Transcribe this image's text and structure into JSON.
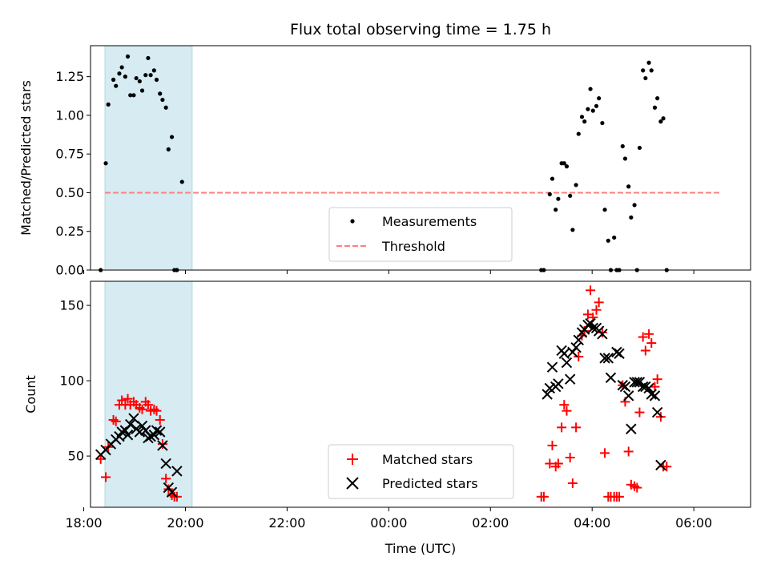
{
  "figure": {
    "title": "Flux total observing time = 1.75 h",
    "xlabel": "Time (UTC)"
  },
  "colors": {
    "shade": "#add8e6",
    "threshold": "#ff7f7f",
    "matched": "#ff0000",
    "predicted": "#000000",
    "measure": "#000000"
  },
  "chart_data": [
    {
      "type": "scatter",
      "ylabel": "Matched/Predicted stars",
      "xlim": [
        "18:08",
        "07:07"
      ],
      "ylim": [
        0,
        1.45
      ],
      "yticks": [
        0.0,
        0.25,
        0.5,
        0.75,
        1.0,
        1.25
      ],
      "ytick_labels": [
        "0.00",
        "0.25",
        "0.50",
        "0.75",
        "1.00",
        "1.25"
      ],
      "shaded_interval": [
        "18:25",
        "20:08"
      ],
      "threshold": {
        "name": "Threshold",
        "value": 0.5,
        "x": [
          "18:25",
          "06:30"
        ]
      },
      "legend_placement": "lower-center",
      "series": [
        {
          "name": "Measurements",
          "points": [
            [
              "18:20",
              0.0
            ],
            [
              "18:26",
              0.69
            ],
            [
              "18:29",
              1.07
            ],
            [
              "18:35",
              1.23
            ],
            [
              "18:38",
              1.19
            ],
            [
              "18:42",
              1.27
            ],
            [
              "18:45",
              1.31
            ],
            [
              "18:49",
              1.25
            ],
            [
              "18:52",
              1.38
            ],
            [
              "18:55",
              1.13
            ],
            [
              "18:59",
              1.13
            ],
            [
              "19:02",
              1.24
            ],
            [
              "19:06",
              1.22
            ],
            [
              "19:09",
              1.16
            ],
            [
              "19:13",
              1.26
            ],
            [
              "19:16",
              1.37
            ],
            [
              "19:19",
              1.26
            ],
            [
              "19:23",
              1.29
            ],
            [
              "19:26",
              1.23
            ],
            [
              "19:30",
              1.14
            ],
            [
              "19:33",
              1.1
            ],
            [
              "19:37",
              1.05
            ],
            [
              "19:40",
              0.78
            ],
            [
              "19:44",
              0.86
            ],
            [
              "19:47",
              0.0
            ],
            [
              "19:50",
              0.0
            ],
            [
              "19:56",
              0.57
            ],
            [
              "03:00",
              0.0
            ],
            [
              "03:03",
              0.0
            ],
            [
              "03:10",
              0.49
            ],
            [
              "03:13",
              0.59
            ],
            [
              "03:17",
              0.39
            ],
            [
              "03:20",
              0.46
            ],
            [
              "03:24",
              0.69
            ],
            [
              "03:27",
              0.69
            ],
            [
              "03:30",
              0.67
            ],
            [
              "03:34",
              0.48
            ],
            [
              "03:37",
              0.26
            ],
            [
              "03:41",
              0.55
            ],
            [
              "03:44",
              0.88
            ],
            [
              "03:48",
              0.99
            ],
            [
              "03:51",
              0.96
            ],
            [
              "03:55",
              1.04
            ],
            [
              "03:58",
              1.17
            ],
            [
              "04:01",
              1.03
            ],
            [
              "04:05",
              1.06
            ],
            [
              "04:08",
              1.11
            ],
            [
              "04:12",
              0.95
            ],
            [
              "04:15",
              0.39
            ],
            [
              "04:19",
              0.19
            ],
            [
              "04:22",
              0.0
            ],
            [
              "04:26",
              0.21
            ],
            [
              "04:29",
              0.0
            ],
            [
              "04:32",
              0.0
            ],
            [
              "04:36",
              0.8
            ],
            [
              "04:39",
              0.72
            ],
            [
              "04:43",
              0.54
            ],
            [
              "04:46",
              0.34
            ],
            [
              "04:50",
              0.42
            ],
            [
              "04:53",
              0.0
            ],
            [
              "04:56",
              0.79
            ],
            [
              "05:00",
              1.29
            ],
            [
              "05:03",
              1.24
            ],
            [
              "05:07",
              1.34
            ],
            [
              "05:10",
              1.29
            ],
            [
              "05:14",
              1.05
            ],
            [
              "05:17",
              1.11
            ],
            [
              "05:21",
              0.96
            ],
            [
              "05:24",
              0.98
            ],
            [
              "05:28",
              0.0
            ]
          ]
        }
      ]
    },
    {
      "type": "scatter",
      "ylabel": "Count",
      "xlim": [
        "18:08",
        "07:07"
      ],
      "ylim": [
        16,
        166
      ],
      "yticks": [
        50,
        100,
        150
      ],
      "ytick_labels": [
        "50",
        "100",
        "150"
      ],
      "xticks": [
        "18:00",
        "20:00",
        "22:00",
        "00:00",
        "02:00",
        "04:00",
        "06:00"
      ],
      "shaded_interval": [
        "18:25",
        "20:08"
      ],
      "legend_placement": "lower-center",
      "series": [
        {
          "name": "Matched stars",
          "marker": "+",
          "points": [
            [
              "18:20",
              48
            ],
            [
              "18:26",
              36
            ],
            [
              "18:29",
              56
            ],
            [
              "18:35",
              74
            ],
            [
              "18:38",
              73
            ],
            [
              "18:42",
              84
            ],
            [
              "18:45",
              87
            ],
            [
              "18:49",
              84
            ],
            [
              "18:52",
              88
            ],
            [
              "18:55",
              84
            ],
            [
              "18:59",
              86
            ],
            [
              "19:02",
              84
            ],
            [
              "19:06",
              82
            ],
            [
              "19:09",
              81
            ],
            [
              "19:13",
              86
            ],
            [
              "19:16",
              84
            ],
            [
              "19:19",
              80
            ],
            [
              "19:23",
              81
            ],
            [
              "19:26",
              80
            ],
            [
              "19:30",
              74
            ],
            [
              "19:33",
              58
            ],
            [
              "19:37",
              35
            ],
            [
              "19:40",
              28
            ],
            [
              "19:44",
              24
            ],
            [
              "19:47",
              23
            ],
            [
              "19:50",
              23
            ],
            [
              "03:00",
              23
            ],
            [
              "03:03",
              23
            ],
            [
              "03:10",
              45
            ],
            [
              "03:13",
              57
            ],
            [
              "03:17",
              43
            ],
            [
              "03:20",
              45
            ],
            [
              "03:24",
              69
            ],
            [
              "03:27",
              84
            ],
            [
              "03:30",
              80
            ],
            [
              "03:34",
              49
            ],
            [
              "03:37",
              32
            ],
            [
              "03:41",
              69
            ],
            [
              "03:44",
              116
            ],
            [
              "03:48",
              130
            ],
            [
              "03:51",
              133
            ],
            [
              "03:55",
              144
            ],
            [
              "03:58",
              160
            ],
            [
              "04:01",
              142
            ],
            [
              "04:05",
              147
            ],
            [
              "04:08",
              152
            ],
            [
              "04:12",
              132
            ],
            [
              "04:15",
              52
            ],
            [
              "04:19",
              23
            ],
            [
              "04:22",
              23
            ],
            [
              "04:26",
              23
            ],
            [
              "04:29",
              23
            ],
            [
              "04:32",
              23
            ],
            [
              "04:36",
              97
            ],
            [
              "04:39",
              86
            ],
            [
              "04:43",
              53
            ],
            [
              "04:46",
              31
            ],
            [
              "04:50",
              30
            ],
            [
              "04:53",
              29
            ],
            [
              "04:56",
              79
            ],
            [
              "05:00",
              129
            ],
            [
              "05:03",
              120
            ],
            [
              "05:07",
              131
            ],
            [
              "05:10",
              125
            ],
            [
              "05:14",
              96
            ],
            [
              "05:17",
              101
            ],
            [
              "05:21",
              76
            ],
            [
              "05:24",
              43
            ],
            [
              "05:28",
              43
            ]
          ]
        },
        {
          "name": "Predicted stars",
          "marker": "x",
          "points": [
            [
              "18:20",
              51
            ],
            [
              "18:26",
              54
            ],
            [
              "18:32",
              58
            ],
            [
              "18:38",
              61
            ],
            [
              "18:42",
              63
            ],
            [
              "18:45",
              66
            ],
            [
              "18:49",
              67
            ],
            [
              "18:52",
              64
            ],
            [
              "18:55",
              71
            ],
            [
              "18:59",
              75
            ],
            [
              "19:02",
              68
            ],
            [
              "19:06",
              66
            ],
            [
              "19:09",
              70
            ],
            [
              "19:13",
              67
            ],
            [
              "19:16",
              62
            ],
            [
              "19:19",
              63
            ],
            [
              "19:23",
              64
            ],
            [
              "19:26",
              67
            ],
            [
              "19:30",
              66
            ],
            [
              "19:33",
              57
            ],
            [
              "19:37",
              45
            ],
            [
              "19:40",
              29
            ],
            [
              "19:44",
              26
            ],
            [
              "19:50",
              40
            ],
            [
              "03:07",
              91
            ],
            [
              "03:10",
              95
            ],
            [
              "03:13",
              109
            ],
            [
              "03:17",
              96
            ],
            [
              "03:20",
              98
            ],
            [
              "03:24",
              120
            ],
            [
              "03:27",
              118
            ],
            [
              "03:30",
              112
            ],
            [
              "03:34",
              101
            ],
            [
              "03:37",
              119
            ],
            [
              "03:41",
              122
            ],
            [
              "03:44",
              127
            ],
            [
              "03:48",
              132
            ],
            [
              "03:51",
              134
            ],
            [
              "03:55",
              137
            ],
            [
              "03:58",
              138
            ],
            [
              "04:01",
              135
            ],
            [
              "04:05",
              135
            ],
            [
              "04:08",
              133
            ],
            [
              "04:12",
              131
            ],
            [
              "04:15",
              115
            ],
            [
              "04:19",
              115
            ],
            [
              "04:22",
              102
            ],
            [
              "04:29",
              119
            ],
            [
              "04:32",
              118
            ],
            [
              "04:36",
              97
            ],
            [
              "04:39",
              96
            ],
            [
              "04:43",
              90
            ],
            [
              "04:46",
              68
            ],
            [
              "04:50",
              99
            ],
            [
              "04:53",
              99
            ],
            [
              "04:56",
              99
            ],
            [
              "05:00",
              96
            ],
            [
              "05:03",
              96
            ],
            [
              "05:07",
              95
            ],
            [
              "05:10",
              91
            ],
            [
              "05:14",
              90
            ],
            [
              "05:17",
              79
            ],
            [
              "05:21",
              44
            ]
          ]
        }
      ]
    }
  ]
}
